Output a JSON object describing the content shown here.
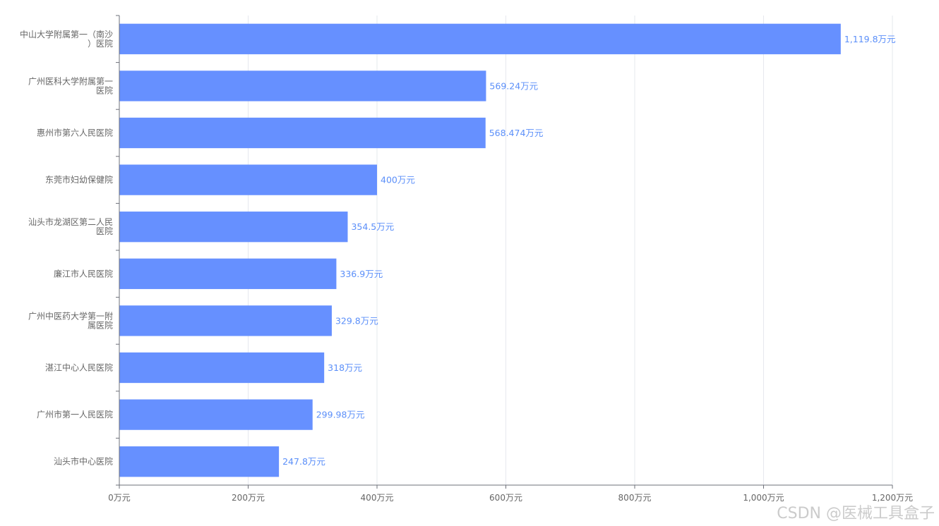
{
  "chart_data": {
    "type": "bar",
    "orientation": "horizontal",
    "categories": [
      [
        "中山大学附属第一（南沙",
        "）医院"
      ],
      [
        "广州医科大学附属第一",
        "医院"
      ],
      [
        "惠州市第六人民医院"
      ],
      [
        "东莞市妇幼保健院"
      ],
      [
        "汕头市龙湖区第二人民",
        "医院"
      ],
      [
        "廉江市人民医院"
      ],
      [
        "广州中医药大学第一附",
        "属医院"
      ],
      [
        "湛江中心人民医院"
      ],
      [
        "广州市第一人民医院"
      ],
      [
        "汕头市中心医院"
      ]
    ],
    "values": [
      1119.8,
      569.24,
      568.474,
      400,
      354.5,
      336.9,
      329.8,
      318,
      299.98,
      247.8
    ],
    "value_labels": [
      "1,119.8万元",
      "569.24万元",
      "568.474万元",
      "400万元",
      "354.5万元",
      "336.9万元",
      "329.8万元",
      "318万元",
      "299.98万元",
      "247.8万元"
    ],
    "xticks": [
      "0万元",
      "200万元",
      "400万元",
      "600万元",
      "800万元",
      "1,000万元",
      "1,200万元"
    ],
    "xlim": [
      0,
      1200
    ],
    "bar_color": "#6690ff",
    "grid": true
  },
  "watermark": "CSDN @医械工具盒子"
}
